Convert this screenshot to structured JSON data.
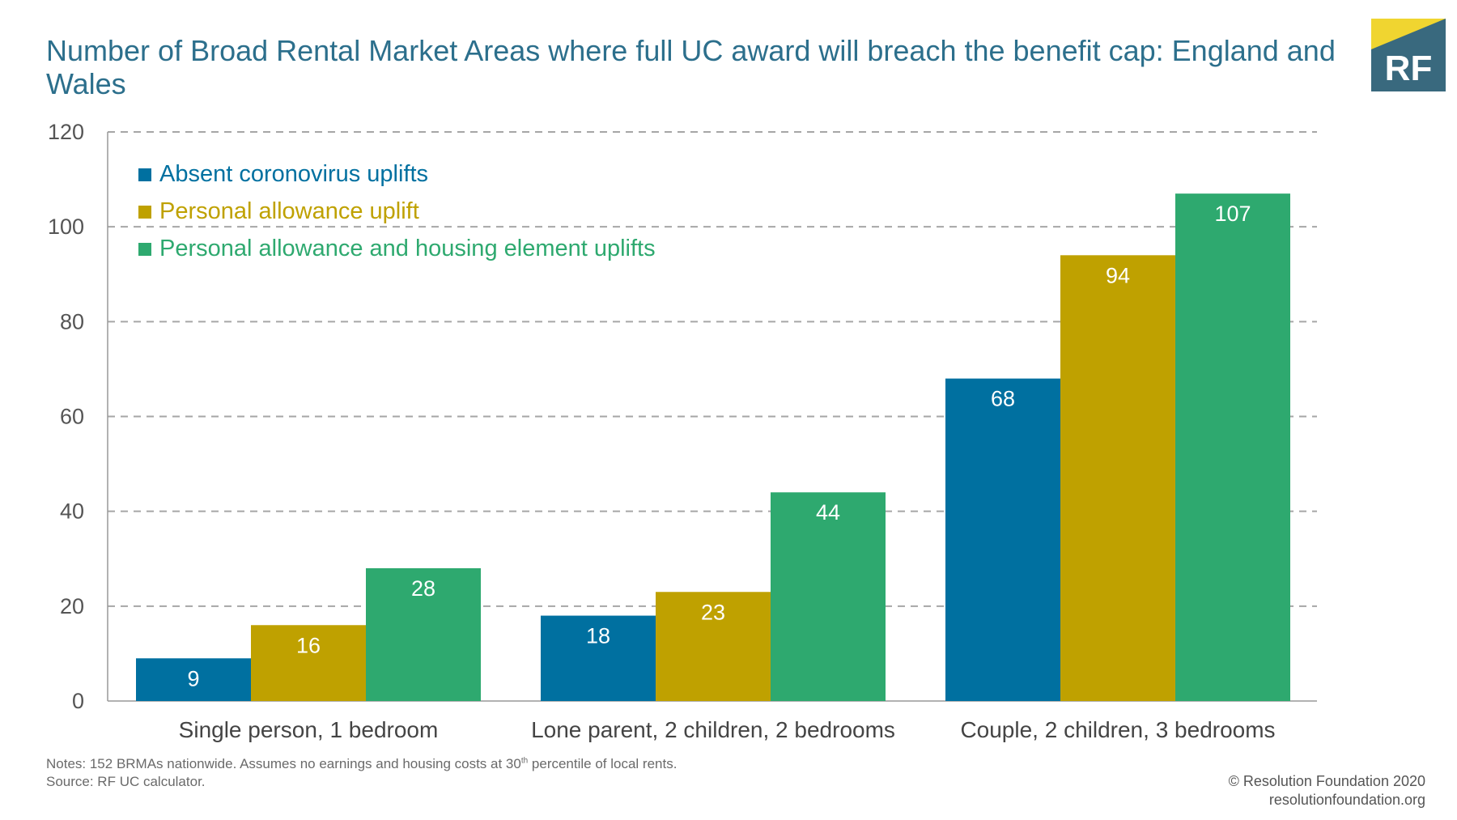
{
  "chart_data": {
    "type": "bar",
    "title": "Number of Broad Rental Market Areas where full UC award will breach the benefit cap: England and Wales",
    "categories": [
      "Single person, 1 bedroom",
      "Lone parent, 2 children, 2 bedrooms",
      "Couple, 2 children, 3 bedrooms"
    ],
    "series": [
      {
        "name": "Absent coronovirus uplifts",
        "values": [
          9,
          18,
          68
        ],
        "color": "#0070a0"
      },
      {
        "name": "Personal allowance uplift",
        "values": [
          16,
          23,
          94
        ],
        "color": "#bfa100"
      },
      {
        "name": "Personal allowance and housing element uplifts",
        "values": [
          28,
          44,
          107
        ],
        "color": "#2ea96f"
      }
    ],
    "ylim": [
      0,
      120
    ],
    "yticks": [
      0,
      20,
      40,
      60,
      80,
      100,
      120
    ],
    "grid": true,
    "legend": "top-left",
    "data_labels": true
  },
  "notes": {
    "line1_pre": "Notes: 152 BRMAs nationwide. Assumes no earnings and housing costs at 30",
    "line1_sup": "th",
    "line1_post": " percentile of local rents.",
    "source": "Source: RF UC calculator."
  },
  "credit": {
    "copyright": "© Resolution Foundation 2020",
    "url": "resolutionfoundation.org"
  },
  "logo": {
    "text": "RF",
    "colors": {
      "yellow": "#f0d530",
      "teal": "#39697e"
    }
  }
}
